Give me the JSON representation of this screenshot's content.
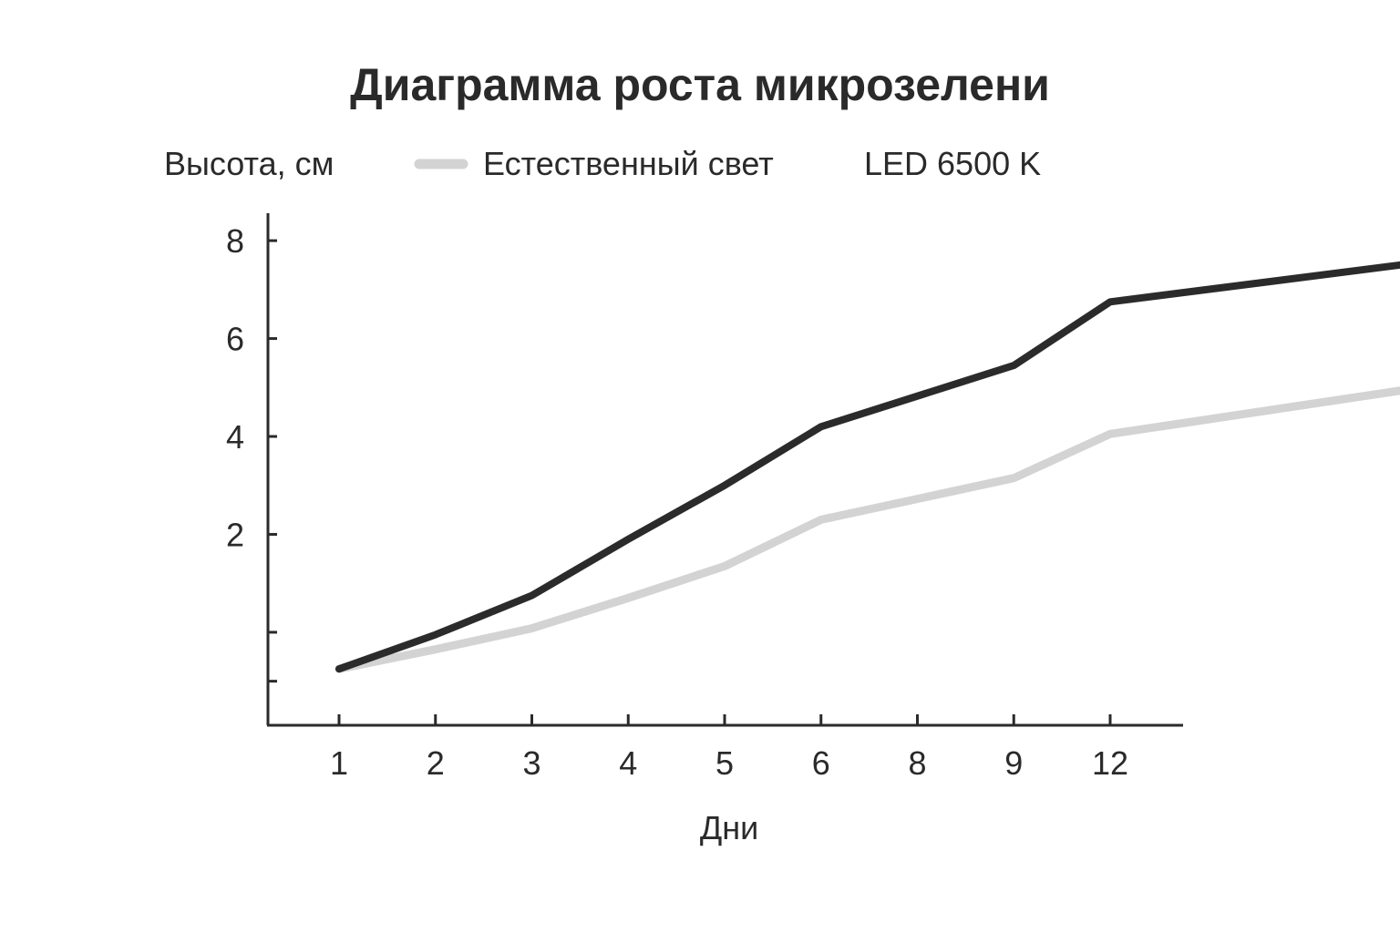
{
  "chart_data": {
    "type": "line",
    "title": "Диаграмма роста микрозелени",
    "ylabel": "Высота, см",
    "xlabel": "Дни",
    "categories": [
      "1",
      "2",
      "3",
      "4",
      "5",
      "6",
      "8",
      "9",
      "12"
    ],
    "y_ticks": [
      {
        "value": -1,
        "label": ""
      },
      {
        "value": 0,
        "label": ""
      },
      {
        "value": 2,
        "label": "2"
      },
      {
        "value": 4,
        "label": "4"
      },
      {
        "value": 6,
        "label": "6"
      },
      {
        "value": 8,
        "label": "8"
      }
    ],
    "ylim": [
      -1.9,
      8.3
    ],
    "legend_position": "top",
    "grid": false,
    "series": [
      {
        "name": "Естественный свет",
        "color": "#d3d3d3",
        "legend_swatch": true,
        "points": [
          [
            1,
            -0.75
          ],
          [
            2,
            -0.35
          ],
          [
            3,
            0.08
          ],
          [
            4,
            0.7
          ],
          [
            5,
            1.35
          ],
          [
            6,
            2.3
          ],
          [
            8,
            3.15
          ],
          [
            9,
            4.05
          ],
          [
            12.4,
            5.05
          ]
        ]
      },
      {
        "name": "LED 6500 K",
        "color": "#2b2b2b",
        "legend_swatch": false,
        "points": [
          [
            1,
            -0.75
          ],
          [
            2,
            -0.05
          ],
          [
            3,
            0.75
          ],
          [
            4,
            1.9
          ],
          [
            5,
            3.0
          ],
          [
            6,
            4.2
          ],
          [
            8,
            5.45
          ],
          [
            9,
            6.75
          ],
          [
            12.4,
            7.6
          ]
        ]
      }
    ]
  }
}
